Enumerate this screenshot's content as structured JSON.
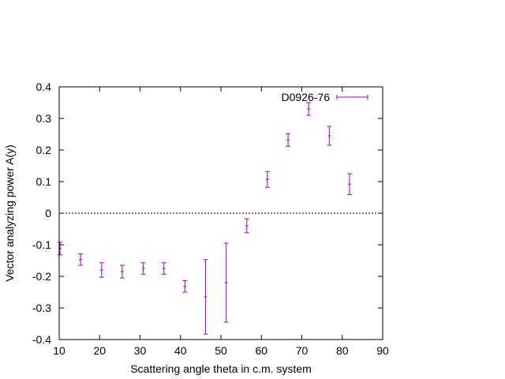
{
  "chart_data": {
    "type": "scatter",
    "xlabel": "Scattering angle theta in c.m. system",
    "ylabel": "Vector analyzing power A(y)",
    "xlim": [
      10,
      90
    ],
    "ylim": [
      -0.4,
      0.4
    ],
    "xticks": [
      10,
      20,
      30,
      40,
      50,
      60,
      70,
      80,
      90
    ],
    "yticks": [
      -0.4,
      -0.3,
      -0.2,
      -0.1,
      0,
      0.1,
      0.2,
      0.3,
      0.4
    ],
    "ytick_labels": [
      "-0.4",
      "-0.3",
      "-0.2",
      "-0.1",
      "0",
      "0.1",
      "0.2",
      "0.3",
      "0.4"
    ],
    "grid": false,
    "zero_line": true,
    "legend_position": "top-right",
    "series": [
      {
        "name": "D0926-76",
        "color": "#9400d3",
        "points": [
          {
            "x": 10.2,
            "y": -0.112,
            "err": 0.02
          },
          {
            "x": 15.3,
            "y": -0.147,
            "err": 0.018
          },
          {
            "x": 20.5,
            "y": -0.18,
            "err": 0.023
          },
          {
            "x": 25.6,
            "y": -0.185,
            "err": 0.02
          },
          {
            "x": 30.8,
            "y": -0.175,
            "err": 0.018
          },
          {
            "x": 35.9,
            "y": -0.175,
            "err": 0.018
          },
          {
            "x": 41.1,
            "y": -0.232,
            "err": 0.018
          },
          {
            "x": 46.2,
            "y": -0.265,
            "err": 0.118
          },
          {
            "x": 51.3,
            "y": -0.22,
            "err": 0.125
          },
          {
            "x": 56.4,
            "y": -0.04,
            "err": 0.022
          },
          {
            "x": 61.5,
            "y": 0.107,
            "err": 0.025
          },
          {
            "x": 66.6,
            "y": 0.232,
            "err": 0.02
          },
          {
            "x": 71.7,
            "y": 0.33,
            "err": 0.02
          },
          {
            "x": 76.8,
            "y": 0.245,
            "err": 0.03
          },
          {
            "x": 81.8,
            "y": 0.092,
            "err": 0.033
          }
        ]
      }
    ]
  }
}
